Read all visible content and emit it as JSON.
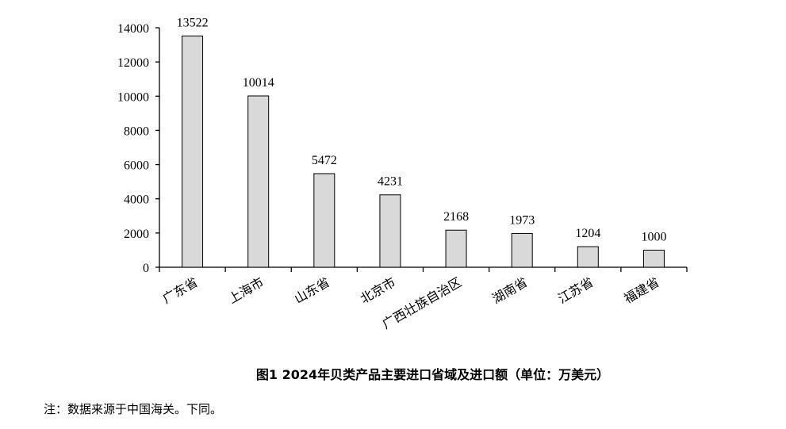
{
  "chart_data": {
    "type": "bar",
    "title": "图1 2024年贝类产品主要进口省域及进口额（单位：万美元）",
    "categories": [
      "广东省",
      "上海市",
      "山东省",
      "北京市",
      "广西壮族自治区",
      "湖南省",
      "江苏省",
      "福建省"
    ],
    "values": [
      13522,
      10014,
      5472,
      4231,
      2168,
      1973,
      1204,
      1000
    ],
    "ylim": [
      0,
      14000
    ],
    "yticks": [
      0,
      2000,
      4000,
      6000,
      8000,
      10000,
      12000,
      14000
    ],
    "grid": false,
    "bar_color": "#d9d9d9",
    "xlabel": "",
    "ylabel": ""
  },
  "note": "注：数据来源于中国海关。下同。"
}
